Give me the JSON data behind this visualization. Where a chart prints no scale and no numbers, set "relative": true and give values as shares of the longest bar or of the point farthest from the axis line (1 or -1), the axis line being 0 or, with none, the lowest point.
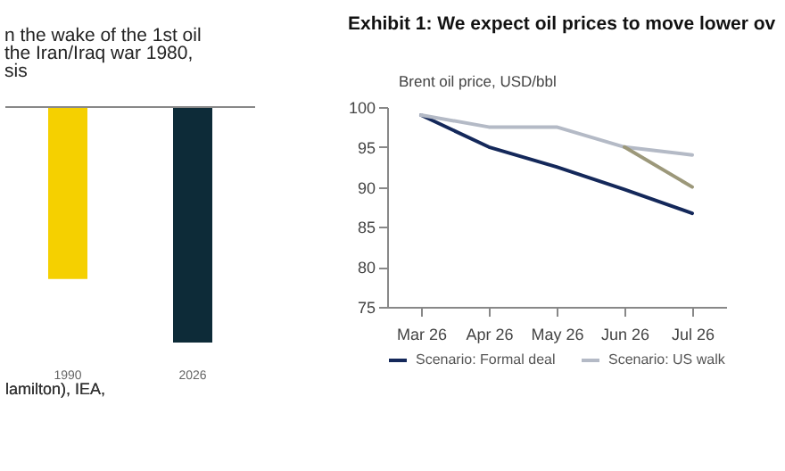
{
  "chart_data": [
    {
      "type": "bar",
      "title": "n the wake of the 1st oil\nthe Iran/Iraq war 1980,\nsis",
      "categories": [
        "1990",
        "2026"
      ],
      "values": [
        -0.73,
        -1
      ],
      "colors": [
        "#f5d000",
        "#0d2b38"
      ],
      "relative": true,
      "annotations": [
        "lamilton), IEA,"
      ]
    },
    {
      "type": "line",
      "title": "Exhibit 1: We expect oil prices to move lower ov",
      "ylabel": "Brent oil price, USD/bbl",
      "categories": [
        "Mar 26",
        "Apr 26",
        "May 26",
        "Jun 26",
        "Jul 26"
      ],
      "ylim": [
        75,
        100
      ],
      "yticks": [
        75,
        80,
        85,
        90,
        95,
        100
      ],
      "legend": "bottom",
      "series": [
        {
          "name": "Scenario: Formal deal",
          "color": "#14285a",
          "values": [
            99,
            95,
            92.5,
            89.7,
            86.7
          ]
        },
        {
          "name": "Scenario: US walk",
          "color": "#b4bac6",
          "values": [
            99,
            97.5,
            97.5,
            95,
            94
          ]
        },
        {
          "color": "#9c987a",
          "values": [
            null,
            null,
            null,
            95,
            90
          ]
        }
      ]
    }
  ]
}
